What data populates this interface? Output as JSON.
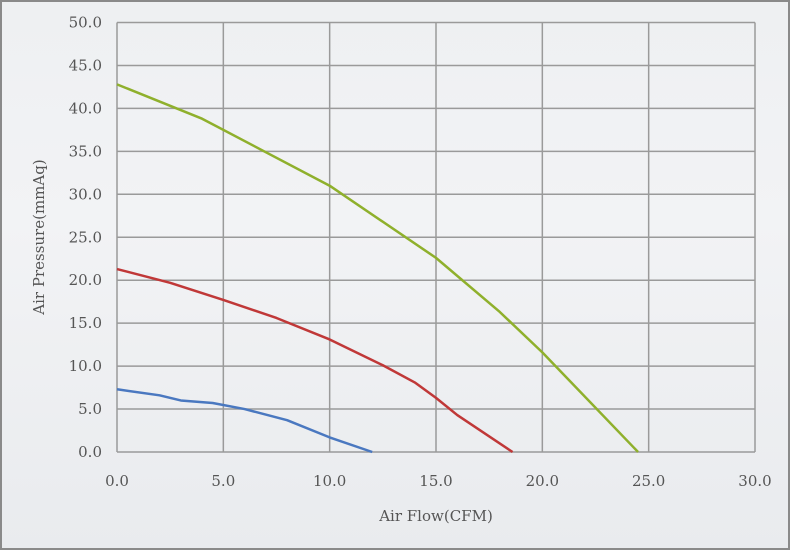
{
  "chart_data": {
    "type": "line",
    "title": "",
    "xlabel": "Air Flow(CFM)",
    "ylabel": "Air Pressure(mmAq)",
    "xlim": [
      0,
      30
    ],
    "ylim": [
      0,
      50
    ],
    "xticks": [
      "0.0",
      "5.0",
      "10.0",
      "15.0",
      "20.0",
      "25.0",
      "30.0"
    ],
    "yticks": [
      "0.0",
      "5.0",
      "10.0",
      "15.0",
      "20.0",
      "25.0",
      "30.0",
      "35.0",
      "40.0",
      "45.0",
      "50.0"
    ],
    "grid": true,
    "series": [
      {
        "color": "#8fb02c",
        "x": [
          0,
          4,
          10,
          15,
          18,
          20,
          24.5
        ],
        "y": [
          42.8,
          38.8,
          31.0,
          22.6,
          16.3,
          11.6,
          0
        ]
      },
      {
        "color": "#c03838",
        "x": [
          0,
          2.5,
          5,
          7.5,
          10,
          12.5,
          14,
          15,
          16,
          18.6
        ],
        "y": [
          21.3,
          19.7,
          17.7,
          15.6,
          13.1,
          10.1,
          8.1,
          6.3,
          4.3,
          0
        ]
      },
      {
        "color": "#4a78c0",
        "x": [
          0,
          2,
          3,
          4.5,
          6,
          8,
          10,
          12
        ],
        "y": [
          7.3,
          6.6,
          6.0,
          5.7,
          5.0,
          3.7,
          1.7,
          0
        ]
      }
    ]
  }
}
